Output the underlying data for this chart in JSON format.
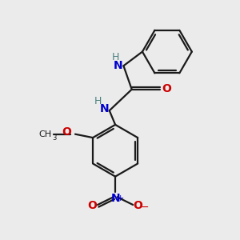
{
  "bg_color": "#ebebeb",
  "bond_color": "#1a1a1a",
  "N_color": "#0000cc",
  "O_color": "#cc0000",
  "H_color": "#4a8080",
  "line_width": 1.6,
  "figsize": [
    3.0,
    3.0
  ],
  "dpi": 100,
  "xlim": [
    0,
    10
  ],
  "ylim": [
    0,
    10
  ]
}
